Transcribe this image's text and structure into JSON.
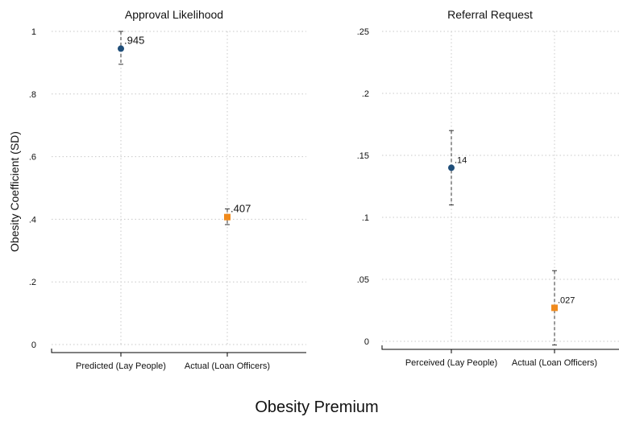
{
  "figure": {
    "ylabel": "Obesity Coefficient (SD)",
    "xlabel": "Obesity Premium"
  },
  "chart_data": [
    {
      "type": "scatter",
      "title": "Approval Likelihood",
      "ylim": [
        0,
        1
      ],
      "yticks": [
        0,
        0.2,
        0.4,
        0.6,
        0.8,
        1
      ],
      "ytick_labels": [
        "0",
        ".2",
        ".4",
        ".6",
        ".8",
        "1"
      ],
      "grid": true,
      "points": [
        {
          "category": "Predicted (Lay People)",
          "value": 0.945,
          "label": ".945",
          "ci": [
            0.895,
            1.0
          ],
          "marker": "circle",
          "color": "#1f4e79"
        },
        {
          "category": "Actual (Loan Officers)",
          "value": 0.407,
          "label": ".407",
          "ci": [
            0.383,
            0.433
          ],
          "marker": "square",
          "color": "#f08a1c"
        }
      ]
    },
    {
      "type": "scatter",
      "title": "Referral Request",
      "ylim": [
        0,
        0.25
      ],
      "yticks": [
        0,
        0.05,
        0.1,
        0.15,
        0.2,
        0.25
      ],
      "ytick_labels": [
        "0",
        ".05",
        ".1",
        ".15",
        ".2",
        ".25"
      ],
      "grid": true,
      "points": [
        {
          "category": "Perceived (Lay People)",
          "value": 0.14,
          "label": ".14",
          "ci": [
            0.11,
            0.17
          ],
          "marker": "circle",
          "color": "#1f4e79"
        },
        {
          "category": "Actual (Loan Officers)",
          "value": 0.027,
          "label": ".027",
          "ci": [
            -0.003,
            0.057
          ],
          "marker": "square",
          "color": "#f08a1c"
        }
      ]
    }
  ]
}
